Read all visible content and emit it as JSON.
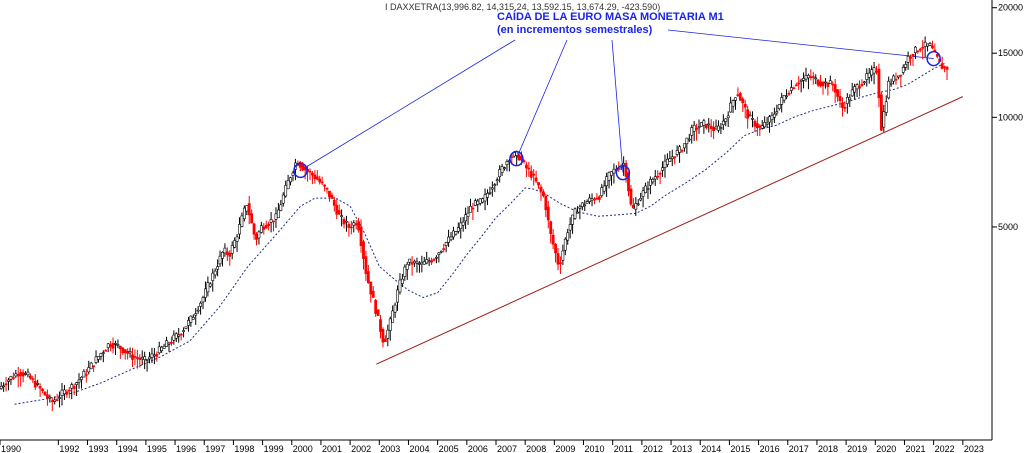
{
  "chart_data": {
    "type": "candlestick",
    "ticker_info": "I DAXXETRA(13,996.82, 14,315.24, 13,592.15, 13,674.29, -423.590)",
    "annotation": {
      "line1": "CAÍDA DE LA EURO MASA MONETARIA M1",
      "line2": "(en incrementos semestrales)"
    },
    "y_scale": "log",
    "ylim": [
      1300,
      21000
    ],
    "y_ticks": [
      {
        "value": 20000,
        "label": "20000"
      },
      {
        "value": 15000,
        "label": "15000"
      },
      {
        "value": 10000,
        "label": "10000"
      },
      {
        "value": 5000,
        "label": "5000"
      }
    ],
    "xlim": [
      1990.0,
      2024.0
    ],
    "x_ticks": [
      "1990",
      "1992",
      "1993",
      "1994",
      "1995",
      "1996",
      "1997",
      "1998",
      "1999",
      "2000",
      "2001",
      "2002",
      "2003",
      "2004",
      "2005",
      "2006",
      "2007",
      "2008",
      "2009",
      "2010",
      "2011",
      "2012",
      "2013",
      "2014",
      "2015",
      "2016",
      "2017",
      "2018",
      "2019",
      "2020",
      "2021",
      "2022",
      "2023"
    ],
    "price_path": [
      [
        1990.0,
        1800
      ],
      [
        1990.3,
        1900
      ],
      [
        1990.7,
        2000
      ],
      [
        1991.0,
        1950
      ],
      [
        1991.4,
        1800
      ],
      [
        1991.8,
        1650
      ],
      [
        1992.2,
        1750
      ],
      [
        1992.6,
        1850
      ],
      [
        1993.0,
        2000
      ],
      [
        1993.5,
        2250
      ],
      [
        1993.8,
        2400
      ],
      [
        1994.1,
        2350
      ],
      [
        1994.6,
        2200
      ],
      [
        1995.0,
        2150
      ],
      [
        1995.4,
        2250
      ],
      [
        1995.8,
        2400
      ],
      [
        1996.2,
        2550
      ],
      [
        1996.6,
        2800
      ],
      [
        1997.0,
        3200
      ],
      [
        1997.4,
        3800
      ],
      [
        1997.7,
        4300
      ],
      [
        1997.9,
        4200
      ],
      [
        1998.1,
        4600
      ],
      [
        1998.5,
        5800
      ],
      [
        1998.8,
        4600
      ],
      [
        1999.0,
        5000
      ],
      [
        1999.5,
        5300
      ],
      [
        1999.9,
        6600
      ],
      [
        2000.2,
        7600
      ],
      [
        2000.5,
        7200
      ],
      [
        2000.9,
        6800
      ],
      [
        2001.3,
        6200
      ],
      [
        2001.7,
        5300
      ],
      [
        2002.0,
        5000
      ],
      [
        2002.3,
        5200
      ],
      [
        2002.6,
        3700
      ],
      [
        2002.9,
        3000
      ],
      [
        2003.2,
        2400
      ],
      [
        2003.4,
        2700
      ],
      [
        2003.7,
        3400
      ],
      [
        2004.0,
        4000
      ],
      [
        2004.5,
        3950
      ],
      [
        2004.9,
        4100
      ],
      [
        2005.3,
        4500
      ],
      [
        2005.8,
        5000
      ],
      [
        2006.2,
        5700
      ],
      [
        2006.6,
        5900
      ],
      [
        2007.0,
        6700
      ],
      [
        2007.5,
        7800
      ],
      [
        2007.8,
        7900
      ],
      [
        2008.0,
        7400
      ],
      [
        2008.3,
        6900
      ],
      [
        2008.7,
        6000
      ],
      [
        2008.9,
        4800
      ],
      [
        2009.2,
        3900
      ],
      [
        2009.5,
        4900
      ],
      [
        2009.8,
        5600
      ],
      [
        2010.2,
        5900
      ],
      [
        2010.6,
        6100
      ],
      [
        2010.9,
        6900
      ],
      [
        2011.2,
        7300
      ],
      [
        2011.45,
        7500
      ],
      [
        2011.7,
        5500
      ],
      [
        2011.9,
        5900
      ],
      [
        2012.3,
        6600
      ],
      [
        2012.7,
        7200
      ],
      [
        2013.0,
        7700
      ],
      [
        2013.4,
        8200
      ],
      [
        2013.8,
        9300
      ],
      [
        2014.2,
        9600
      ],
      [
        2014.6,
        9200
      ],
      [
        2014.9,
        9900
      ],
      [
        2015.3,
        11800
      ],
      [
        2015.7,
        10000
      ],
      [
        2016.1,
        9300
      ],
      [
        2016.5,
        10000
      ],
      [
        2016.9,
        11400
      ],
      [
        2017.3,
        12400
      ],
      [
        2017.8,
        13000
      ],
      [
        2018.1,
        12500
      ],
      [
        2018.6,
        12300
      ],
      [
        2018.9,
        10600
      ],
      [
        2019.3,
        11900
      ],
      [
        2019.8,
        13000
      ],
      [
        2020.1,
        13600
      ],
      [
        2020.25,
        9400
      ],
      [
        2020.5,
        12400
      ],
      [
        2020.9,
        13200
      ],
      [
        2021.2,
        14800
      ],
      [
        2021.6,
        15600
      ],
      [
        2021.9,
        15800
      ],
      [
        2022.1,
        14800
      ],
      [
        2022.3,
        13800
      ],
      [
        2022.45,
        13700
      ]
    ],
    "moving_average": [
      [
        1990.5,
        1630
      ],
      [
        1991.5,
        1680
      ],
      [
        1992.5,
        1750
      ],
      [
        1993.5,
        1870
      ],
      [
        1994.5,
        2030
      ],
      [
        1995.5,
        2200
      ],
      [
        1996.5,
        2430
      ],
      [
        1997.5,
        3000
      ],
      [
        1998.5,
        3900
      ],
      [
        1999.5,
        4800
      ],
      [
        2000.3,
        5700
      ],
      [
        2000.8,
        6000
      ],
      [
        2001.5,
        6000
      ],
      [
        2002.0,
        5700
      ],
      [
        2002.5,
        4800
      ],
      [
        2003.0,
        3900
      ],
      [
        2003.5,
        3600
      ],
      [
        2004.0,
        3350
      ],
      [
        2004.5,
        3200
      ],
      [
        2005.0,
        3300
      ],
      [
        2005.5,
        3700
      ],
      [
        2006.0,
        4200
      ],
      [
        2006.5,
        4700
      ],
      [
        2007.0,
        5300
      ],
      [
        2007.5,
        5800
      ],
      [
        2008.0,
        6400
      ],
      [
        2008.3,
        6350
      ],
      [
        2008.7,
        6150
      ],
      [
        2009.2,
        5800
      ],
      [
        2009.8,
        5500
      ],
      [
        2010.5,
        5350
      ],
      [
        2011.2,
        5400
      ],
      [
        2011.8,
        5450
      ],
      [
        2012.3,
        5700
      ],
      [
        2012.8,
        6100
      ],
      [
        2013.5,
        6600
      ],
      [
        2014.2,
        7200
      ],
      [
        2014.9,
        8000
      ],
      [
        2015.5,
        8900
      ],
      [
        2016.1,
        9300
      ],
      [
        2016.6,
        9500
      ],
      [
        2017.2,
        10000
      ],
      [
        2017.8,
        10400
      ],
      [
        2018.4,
        10700
      ],
      [
        2019.0,
        11000
      ],
      [
        2019.6,
        11400
      ],
      [
        2020.1,
        11700
      ],
      [
        2020.6,
        11900
      ],
      [
        2021.1,
        12300
      ],
      [
        2021.6,
        13000
      ],
      [
        2022.0,
        13600
      ],
      [
        2022.4,
        14100
      ]
    ],
    "trendline": {
      "start": [
        2002.9,
        2100
      ],
      "end": [
        2023.0,
        11400
      ]
    },
    "circles": [
      [
        2000.3,
        7150
      ],
      [
        2007.7,
        7700
      ],
      [
        2011.35,
        7050
      ],
      [
        2022.0,
        14500
      ]
    ],
    "callout_targets": [
      [
        2000.3,
        7150
      ],
      [
        2007.7,
        7700
      ],
      [
        2011.35,
        7050
      ],
      [
        2022.0,
        14500
      ]
    ],
    "colors": {
      "up_candle": "#000000",
      "down_candle": "#ff0000",
      "moving_average": "#1f2b8a",
      "trendline": "#a0201a",
      "annotation": "#1a24e6",
      "grid": "#e0e0e0"
    },
    "grid": false
  }
}
